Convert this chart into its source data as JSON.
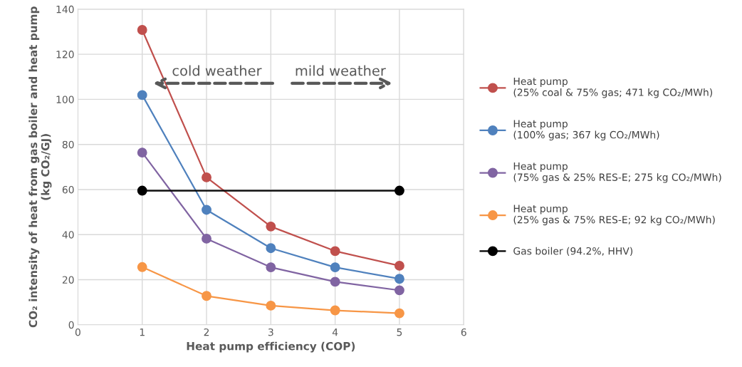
{
  "chart_data": {
    "type": "line",
    "xlabel": "Heat pump efficiency (COP)",
    "ylabel": "CO₂ intensity of heat from gas boiler and heat pump\n(kg CO₂/GJ)",
    "x": [
      1,
      2,
      3,
      4,
      5
    ],
    "series": [
      {
        "name": "Heat pump\n(25% coal & 75% gas; 471 kg CO₂/MWh)",
        "color": "#c0504d",
        "values": [
          130.8,
          65.4,
          43.6,
          32.7,
          26.2
        ]
      },
      {
        "name": "Heat pump\n(100% gas; 367 kg CO₂/MWh)",
        "color": "#4f81bd",
        "values": [
          101.9,
          51.0,
          34.0,
          25.5,
          20.4
        ]
      },
      {
        "name": "Heat pump\n(75% gas & 25% RES-E; 275 kg CO₂/MWh)",
        "color": "#8064a2",
        "values": [
          76.4,
          38.2,
          25.5,
          19.1,
          15.3
        ]
      },
      {
        "name": "Heat pump\n(25% gas & 75% RES-E; 92 kg CO₂/MWh)",
        "color": "#f79646",
        "values": [
          25.6,
          12.8,
          8.5,
          6.4,
          5.1
        ]
      },
      {
        "name": "Gas boiler (94.2%, HHV)",
        "color": "#000000",
        "values": [
          59.5,
          null,
          null,
          null,
          59.5
        ]
      }
    ],
    "annotations": [
      "cold weather",
      "mild weather"
    ],
    "xlim": [
      0,
      6
    ],
    "xticks": [
      0,
      1,
      2,
      3,
      4,
      5,
      6
    ],
    "ylim": [
      0,
      140
    ],
    "yticks": [
      0,
      20,
      40,
      60,
      80,
      100,
      120,
      140
    ],
    "grid": true,
    "legend": "right",
    "marker": "circle",
    "line_style": "solid"
  }
}
